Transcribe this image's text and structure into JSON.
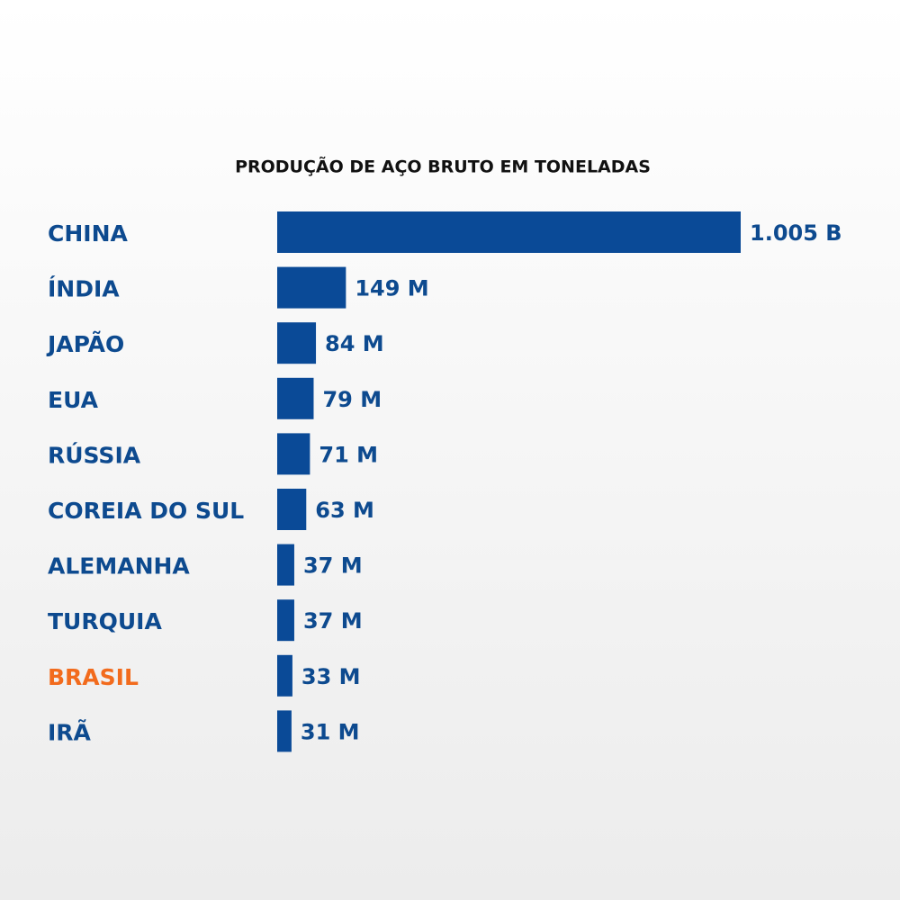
{
  "chart_data": {
    "type": "bar",
    "orientation": "horizontal",
    "title": "PRODUÇÃO DE AÇO BRUTO EM TONELADAS",
    "categories": [
      "CHINA",
      "ÍNDIA",
      "JAPÃO",
      "EUA",
      "RÚSSIA",
      "COREIA DO SUL",
      "ALEMANHA",
      "TURQUIA",
      "BRASIL",
      "IRÃ"
    ],
    "category_colors": [
      "#0d4a8f",
      "#0d4a8f",
      "#0d4a8f",
      "#0d4a8f",
      "#0d4a8f",
      "#0d4a8f",
      "#0d4a8f",
      "#0d4a8f",
      "#f26b1d",
      "#0d4a8f"
    ],
    "values": [
      1005,
      149,
      84,
      79,
      71,
      63,
      37,
      37,
      33,
      31
    ],
    "value_labels": [
      "1.005 B",
      "149 M",
      "84 M",
      "79 M",
      "71 M",
      "63 M",
      "37 M",
      "37 M",
      "33 M",
      "31 M"
    ],
    "color": "#0a4a97"
  }
}
